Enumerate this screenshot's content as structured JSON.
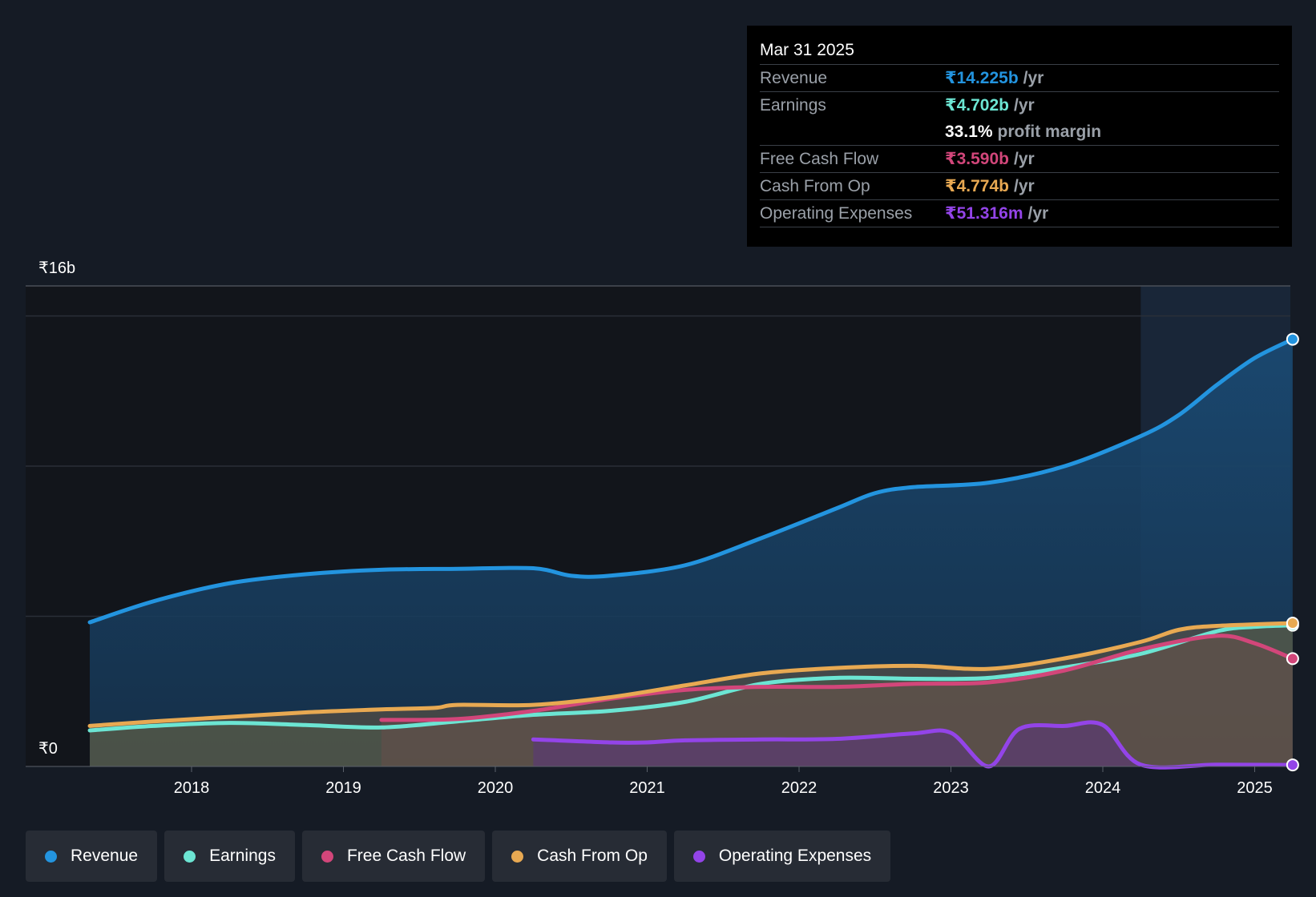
{
  "chart_data": {
    "type": "area",
    "title": "",
    "currency": "₹",
    "y_top_label": "₹16b",
    "y_bottom_label": "₹0",
    "ylim": [
      0,
      16
    ],
    "y_unit": "b",
    "x_ticks": [
      "2018",
      "2019",
      "2020",
      "2021",
      "2022",
      "2023",
      "2024",
      "2025"
    ],
    "series": [
      {
        "name": "Revenue",
        "color": "#2394df",
        "points": [
          [
            2017.33,
            4.8
          ],
          [
            2017.75,
            5.5
          ],
          [
            2018.25,
            6.1
          ],
          [
            2018.75,
            6.4
          ],
          [
            2019.25,
            6.55
          ],
          [
            2019.75,
            6.58
          ],
          [
            2020.25,
            6.6
          ],
          [
            2020.5,
            6.35
          ],
          [
            2020.75,
            6.35
          ],
          [
            2021.25,
            6.7
          ],
          [
            2021.75,
            7.6
          ],
          [
            2022.25,
            8.6
          ],
          [
            2022.5,
            9.1
          ],
          [
            2022.75,
            9.3
          ],
          [
            2023.25,
            9.45
          ],
          [
            2023.75,
            10.0
          ],
          [
            2024.25,
            11.0
          ],
          [
            2024.5,
            11.7
          ],
          [
            2024.75,
            12.7
          ],
          [
            2025.0,
            13.6
          ],
          [
            2025.25,
            14.225
          ]
        ]
      },
      {
        "name": "Earnings",
        "color": "#6ce5d3",
        "points": [
          [
            2017.33,
            1.2
          ],
          [
            2017.75,
            1.35
          ],
          [
            2018.25,
            1.45
          ],
          [
            2018.75,
            1.38
          ],
          [
            2019.25,
            1.3
          ],
          [
            2019.75,
            1.5
          ],
          [
            2020.25,
            1.72
          ],
          [
            2020.75,
            1.85
          ],
          [
            2021.25,
            2.15
          ],
          [
            2021.75,
            2.75
          ],
          [
            2022.25,
            2.95
          ],
          [
            2022.75,
            2.92
          ],
          [
            2023.25,
            2.95
          ],
          [
            2023.75,
            3.3
          ],
          [
            2024.25,
            3.75
          ],
          [
            2024.75,
            4.5
          ],
          [
            2025.0,
            4.65
          ],
          [
            2025.25,
            4.702
          ]
        ]
      },
      {
        "name": "Free Cash Flow",
        "color": "#d2467a",
        "points": [
          [
            2019.25,
            1.55
          ],
          [
            2019.75,
            1.58
          ],
          [
            2020.25,
            1.85
          ],
          [
            2020.75,
            2.25
          ],
          [
            2021.25,
            2.55
          ],
          [
            2021.75,
            2.65
          ],
          [
            2022.25,
            2.65
          ],
          [
            2022.75,
            2.75
          ],
          [
            2023.25,
            2.8
          ],
          [
            2023.75,
            3.2
          ],
          [
            2024.25,
            3.9
          ],
          [
            2024.75,
            4.35
          ],
          [
            2025.0,
            4.1
          ],
          [
            2025.25,
            3.59
          ]
        ]
      },
      {
        "name": "Cash From Op",
        "color": "#e8a952",
        "points": [
          [
            2017.33,
            1.35
          ],
          [
            2017.75,
            1.5
          ],
          [
            2018.25,
            1.65
          ],
          [
            2018.75,
            1.8
          ],
          [
            2019.25,
            1.9
          ],
          [
            2019.6,
            1.95
          ],
          [
            2019.75,
            2.05
          ],
          [
            2020.25,
            2.05
          ],
          [
            2020.75,
            2.3
          ],
          [
            2021.25,
            2.7
          ],
          [
            2021.75,
            3.1
          ],
          [
            2022.25,
            3.28
          ],
          [
            2022.75,
            3.35
          ],
          [
            2023.25,
            3.25
          ],
          [
            2023.75,
            3.6
          ],
          [
            2024.25,
            4.15
          ],
          [
            2024.5,
            4.55
          ],
          [
            2024.75,
            4.68
          ],
          [
            2025.25,
            4.774
          ]
        ]
      },
      {
        "name": "Operating Expenses",
        "color": "#9344e8",
        "points": [
          [
            2020.25,
            0.9
          ],
          [
            2020.75,
            0.8
          ],
          [
            2021.0,
            0.8
          ],
          [
            2021.25,
            0.87
          ],
          [
            2021.75,
            0.9
          ],
          [
            2022.25,
            0.92
          ],
          [
            2022.75,
            1.1
          ],
          [
            2023.0,
            1.12
          ],
          [
            2023.25,
            0.0
          ],
          [
            2023.45,
            1.25
          ],
          [
            2023.75,
            1.35
          ],
          [
            2024.0,
            1.38
          ],
          [
            2024.25,
            0.06
          ],
          [
            2024.75,
            0.06
          ],
          [
            2025.25,
            0.051
          ]
        ]
      }
    ],
    "highlight_start": 2024.25
  },
  "tooltip": {
    "date": "Mar 31 2025",
    "rows": [
      {
        "name": "Revenue",
        "value": "₹14.225b",
        "unit": "/yr",
        "color": "#2394df"
      },
      {
        "name": "Earnings",
        "value": "₹4.702b",
        "unit": "/yr",
        "color": "#6ce5d3"
      },
      {
        "name": "",
        "value": "33.1%",
        "unit": "profit margin",
        "color": "#ffffff"
      },
      {
        "name": "Free Cash Flow",
        "value": "₹3.590b",
        "unit": "/yr",
        "color": "#d2467a"
      },
      {
        "name": "Cash From Op",
        "value": "₹4.774b",
        "unit": "/yr",
        "color": "#e8a952"
      },
      {
        "name": "Operating Expenses",
        "value": "₹51.316m",
        "unit": "/yr",
        "color": "#9344e8"
      }
    ]
  },
  "legend": [
    {
      "label": "Revenue",
      "color": "#2394df"
    },
    {
      "label": "Earnings",
      "color": "#6ce5d3"
    },
    {
      "label": "Free Cash Flow",
      "color": "#d2467a"
    },
    {
      "label": "Cash From Op",
      "color": "#e8a952"
    },
    {
      "label": "Operating Expenses",
      "color": "#9344e8"
    }
  ]
}
